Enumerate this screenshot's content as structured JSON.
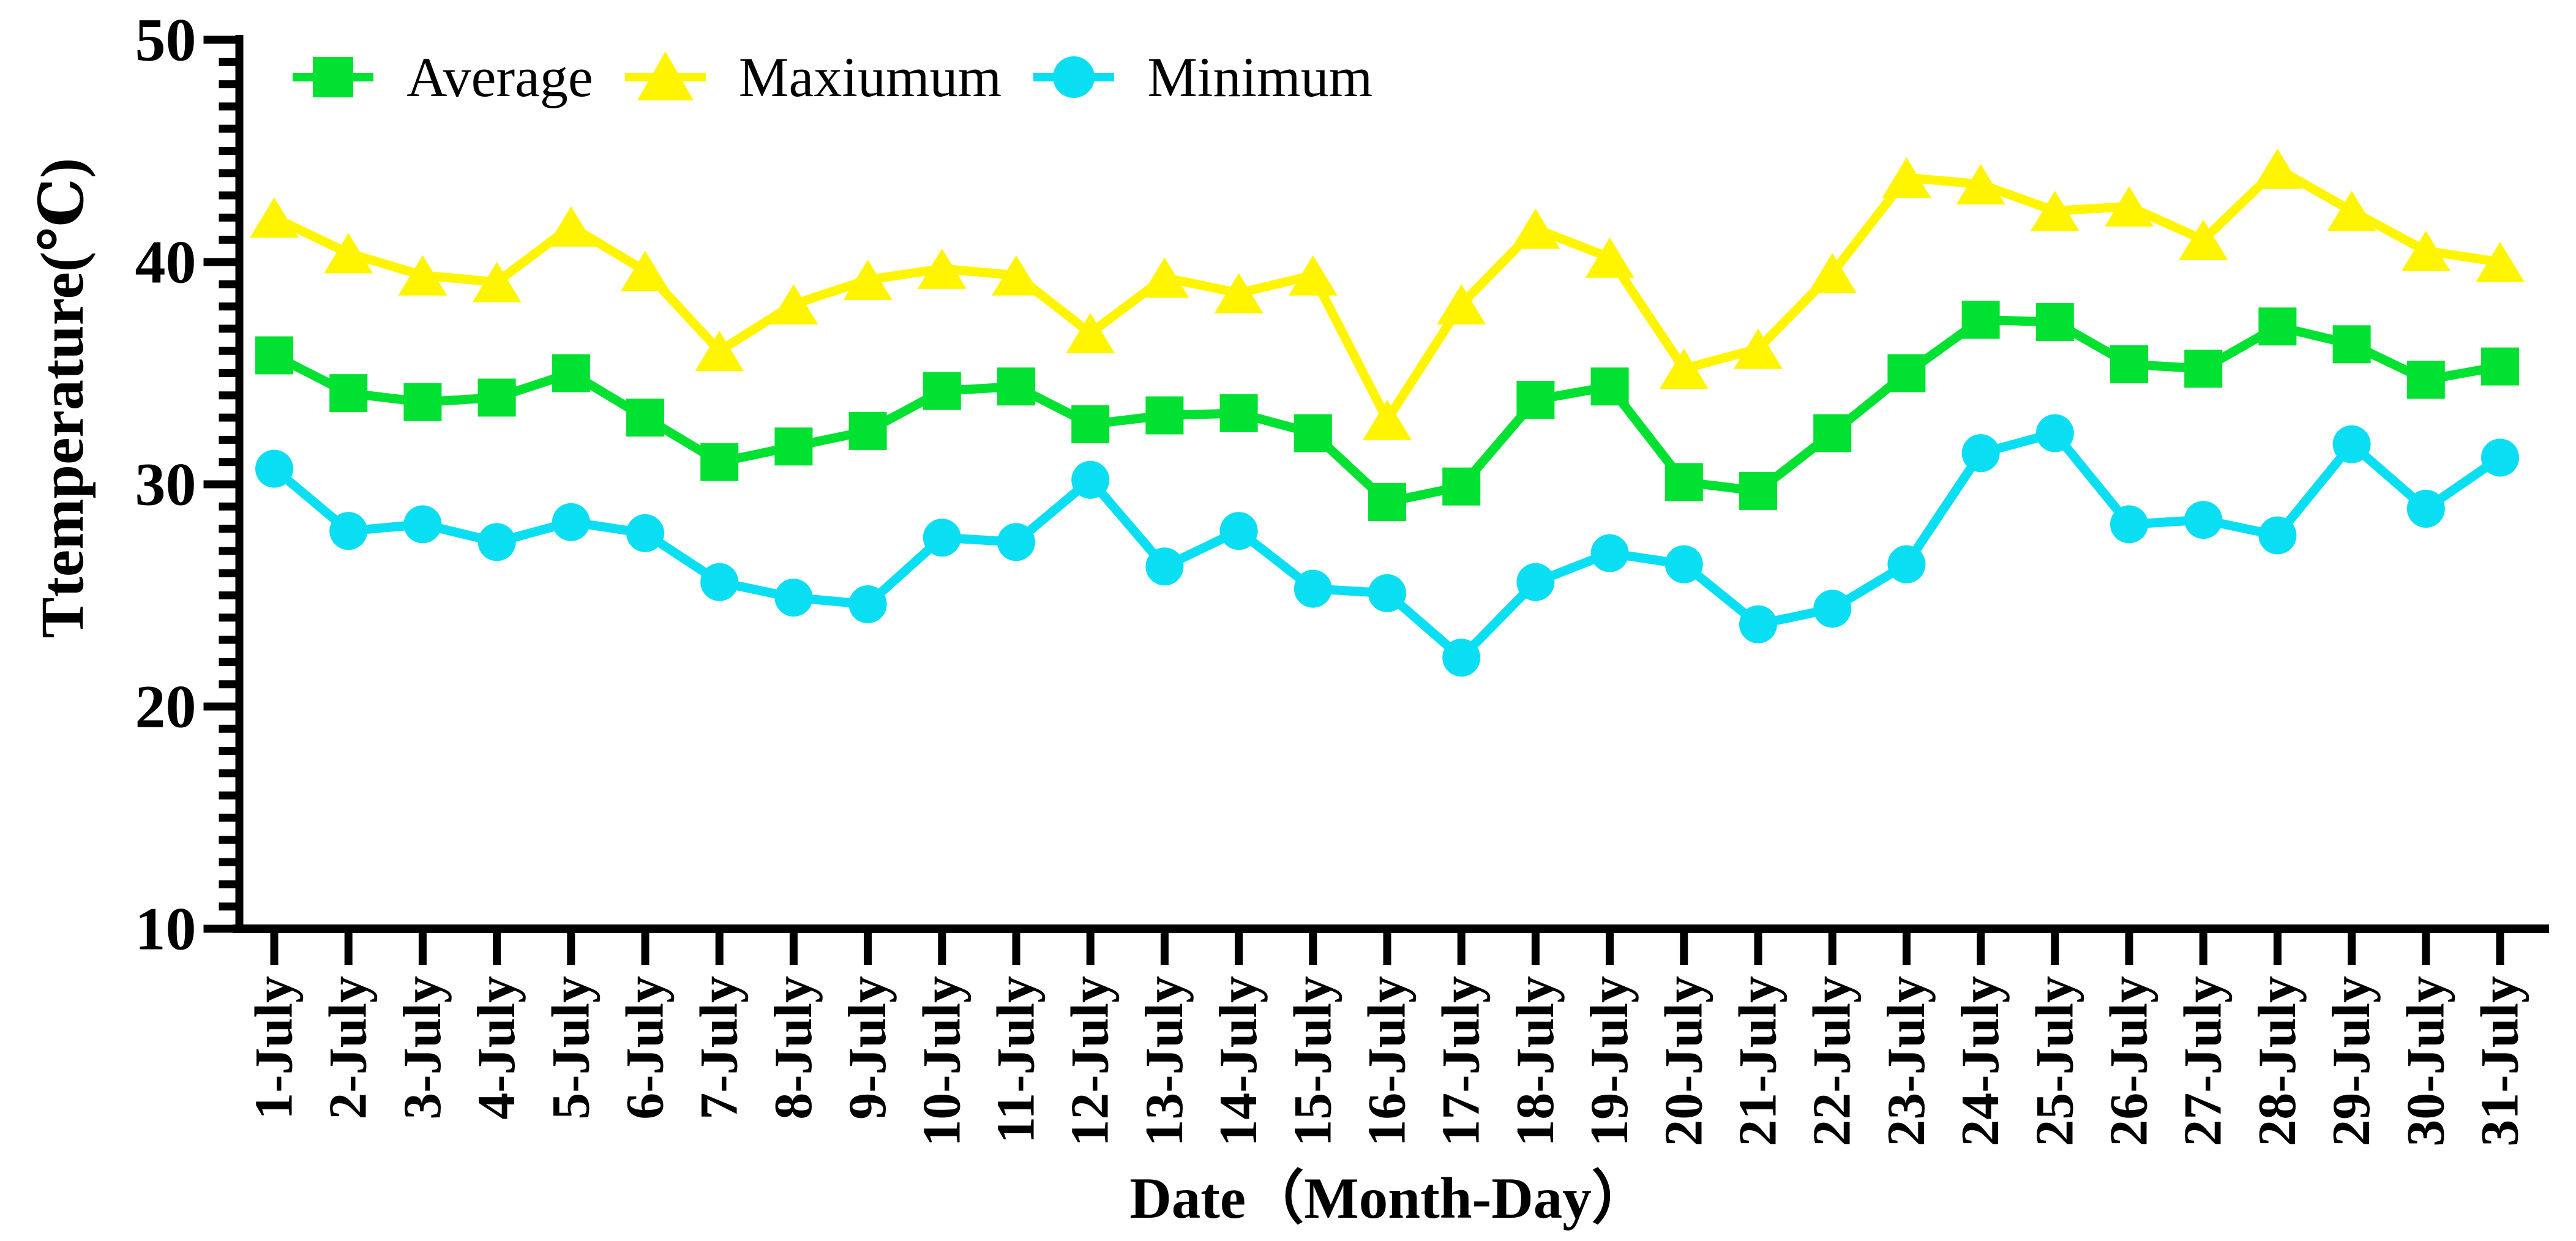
{
  "page": {
    "background": "#FFFFFF"
  },
  "chart_data": {
    "type": "line",
    "title": "",
    "xlabel": "Date（Month-Day）",
    "ylabel": "Ttemperature(℃)",
    "ylim": [
      10,
      50
    ],
    "y_major_ticks": [
      50,
      40,
      30,
      20,
      10
    ],
    "y_minor_tick_step": 1,
    "grid": false,
    "legend_position": "top-left-inside",
    "x_categories": [
      "1-July",
      "2-July",
      "3-July",
      "4-July",
      "5-July",
      "6-July",
      "7-July",
      "8-July",
      "9-July",
      "10-July",
      "11-July",
      "12-July",
      "13-July",
      "14-July",
      "15-July",
      "16-July",
      "17-July",
      "18-July",
      "19-July",
      "20-July",
      "21-July",
      "22-July",
      "23-July",
      "24-July",
      "25-July",
      "26-July",
      "27-July",
      "28-July",
      "29-July",
      "30-July",
      "31-July"
    ],
    "series": [
      {
        "name": "Average",
        "marker": "square",
        "color": "#00E132",
        "values": [
          35.8,
          34.1,
          33.7,
          33.9,
          35.0,
          33.0,
          31.0,
          31.7,
          32.4,
          34.2,
          34.4,
          32.7,
          33.1,
          33.2,
          32.3,
          29.2,
          29.9,
          33.8,
          34.4,
          30.1,
          29.7,
          32.3,
          35.0,
          37.4,
          37.3,
          35.4,
          35.2,
          37.1,
          36.3,
          34.7,
          35.3
        ]
      },
      {
        "name": "Maxiumum",
        "marker": "triangle",
        "color": "#FFF500",
        "values": [
          42.0,
          40.4,
          39.4,
          39.1,
          41.6,
          39.6,
          36.0,
          38.1,
          39.2,
          39.7,
          39.4,
          36.8,
          39.3,
          38.6,
          39.4,
          32.9,
          38.1,
          41.5,
          40.2,
          35.2,
          36.1,
          39.5,
          43.8,
          43.5,
          42.3,
          42.5,
          41.0,
          44.2,
          42.3,
          40.5,
          40.0
        ]
      },
      {
        "name": "Minimum",
        "marker": "circle",
        "color": "#0ADEF2",
        "values": [
          30.7,
          27.9,
          28.2,
          27.4,
          28.3,
          27.8,
          25.6,
          24.9,
          24.6,
          27.6,
          27.4,
          30.2,
          26.3,
          27.9,
          25.3,
          25.1,
          22.2,
          25.6,
          26.9,
          26.4,
          23.7,
          24.4,
          26.4,
          31.4,
          32.3,
          28.2,
          28.4,
          27.7,
          31.8,
          28.9,
          31.2
        ]
      }
    ],
    "axis_color": "#000000",
    "tick_label_color": "#000000"
  }
}
